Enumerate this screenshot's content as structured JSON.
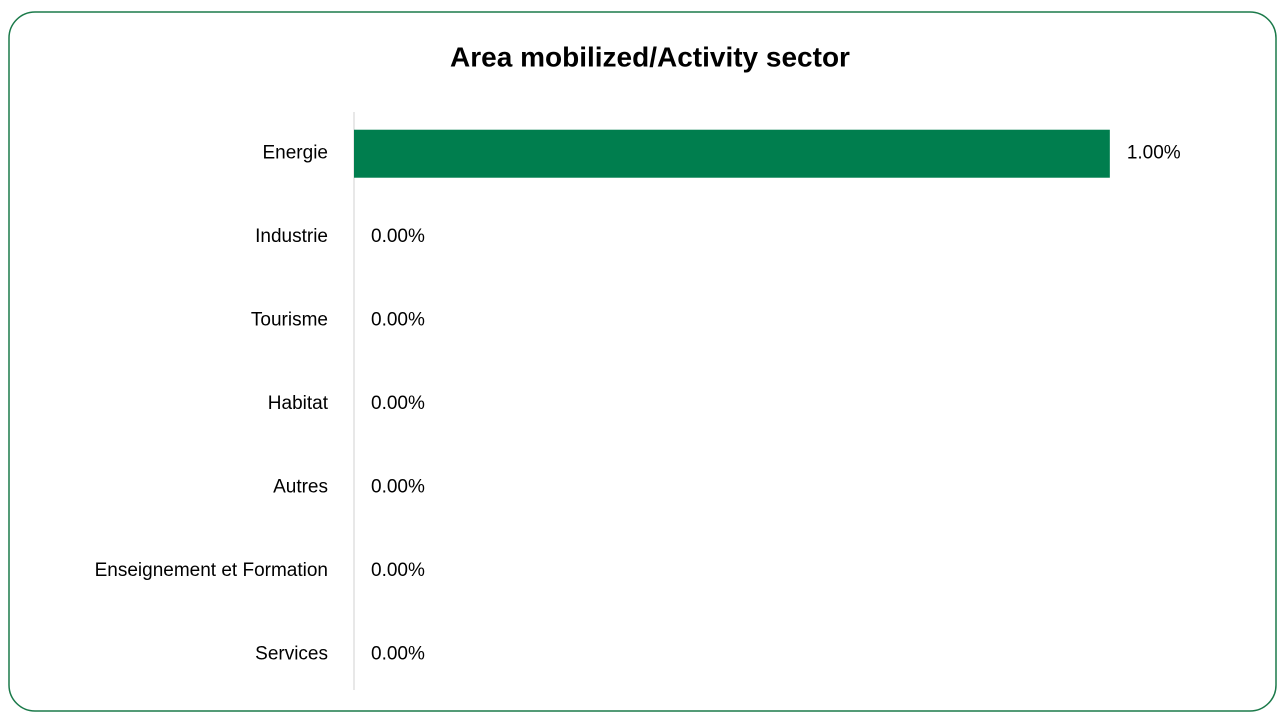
{
  "chart_data": {
    "type": "bar",
    "orientation": "horizontal",
    "title": "Area mobilized/Activity sector",
    "categories": [
      "Energie",
      "Industrie",
      "Tourisme",
      "Habitat",
      "Autres",
      "Enseignement et Formation",
      "Services"
    ],
    "values": [
      1,
      0,
      0,
      0,
      0,
      0,
      0
    ],
    "value_labels": [
      "1.00%",
      "0.00%",
      "0.00%",
      "0.00%",
      "0.00%",
      "0.00%",
      "0.00%"
    ],
    "color": "#007e4e",
    "xlim": [
      0,
      1.2
    ],
    "grid": false
  }
}
